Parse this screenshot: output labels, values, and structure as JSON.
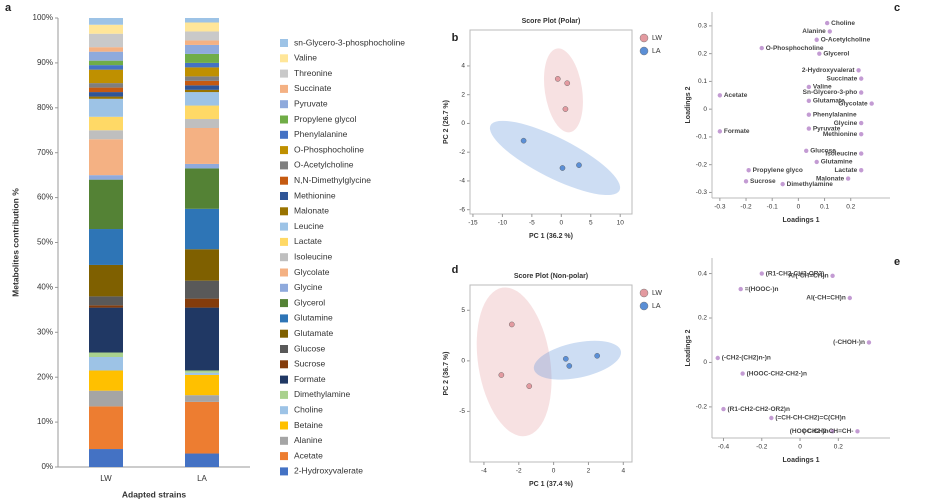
{
  "chart_data": [
    {
      "type": "bar",
      "stacked": true,
      "panel": "a",
      "ylabel": "Metabolites contribution %",
      "xlabel": "Adapted strains",
      "categories": [
        "LW",
        "LA"
      ],
      "ylim": [
        0,
        100
      ],
      "yticks": [
        {
          "value": 0,
          "label": "0%"
        },
        {
          "value": 10,
          "label": "10%"
        },
        {
          "value": 20,
          "label": "20%"
        },
        {
          "value": 30,
          "label": "30%"
        },
        {
          "value": 40,
          "label": "40%"
        },
        {
          "value": 50,
          "label": "50%"
        },
        {
          "value": 60,
          "label": "60%"
        },
        {
          "value": 70,
          "label": "70%"
        },
        {
          "value": 80,
          "label": "80%"
        },
        {
          "value": 90,
          "label": "90%"
        },
        {
          "value": 100,
          "label": "100%"
        }
      ],
      "series": [
        {
          "name": "sn-Glycero-3-phosphocholine",
          "color": "#9dc3e6",
          "values": [
            1.5,
            1
          ]
        },
        {
          "name": "Valine",
          "color": "#ffe699",
          "values": [
            2,
            2
          ]
        },
        {
          "name": "Threonine",
          "color": "#c9c9c9",
          "values": [
            3,
            2
          ]
        },
        {
          "name": "Succinate",
          "color": "#f4b183",
          "values": [
            1,
            1
          ]
        },
        {
          "name": "Pyruvate",
          "color": "#8faadc",
          "values": [
            2,
            2
          ]
        },
        {
          "name": "Propylene glycol",
          "color": "#70ad47",
          "values": [
            1,
            2
          ]
        },
        {
          "name": "Phenylalanine",
          "color": "#4472c4",
          "values": [
            1,
            1
          ]
        },
        {
          "name": "O-Phosphocholine",
          "color": "#bf9000",
          "values": [
            3,
            2
          ]
        },
        {
          "name": "O-Acetylcholine",
          "color": "#7f7f7f",
          "values": [
            1,
            1
          ]
        },
        {
          "name": "N,N-Dimethylglycine",
          "color": "#c55a11",
          "values": [
            1,
            1
          ]
        },
        {
          "name": "Methionine",
          "color": "#2f5597",
          "values": [
            1,
            1
          ]
        },
        {
          "name": "Malonate",
          "color": "#997300",
          "values": [
            0.5,
            0.5
          ]
        },
        {
          "name": "Leucine",
          "color": "#9dc3e6",
          "values": [
            4,
            3
          ]
        },
        {
          "name": "Lactate",
          "color": "#ffd966",
          "values": [
            3,
            3
          ]
        },
        {
          "name": "Isoleucine",
          "color": "#bfbfbf",
          "values": [
            2,
            2
          ]
        },
        {
          "name": "Glycolate",
          "color": "#f4b183",
          "values": [
            8,
            8
          ]
        },
        {
          "name": "Glycine",
          "color": "#8faadc",
          "values": [
            1,
            1
          ]
        },
        {
          "name": "Glycerol",
          "color": "#548235",
          "values": [
            11,
            9
          ]
        },
        {
          "name": "Glutamine",
          "color": "#2e75b6",
          "values": [
            8,
            9
          ]
        },
        {
          "name": "Glutamate",
          "color": "#7f6000",
          "values": [
            7,
            7
          ]
        },
        {
          "name": "Glucose",
          "color": "#595959",
          "values": [
            2,
            4
          ]
        },
        {
          "name": "Sucrose",
          "color": "#843c0c",
          "values": [
            0.5,
            2
          ]
        },
        {
          "name": "Formate",
          "color": "#203864",
          "values": [
            10,
            14
          ]
        },
        {
          "name": "Dimethylamine",
          "color": "#a9d18e",
          "values": [
            1,
            0.5
          ]
        },
        {
          "name": "Choline",
          "color": "#9dc3e6",
          "values": [
            3,
            0.5
          ]
        },
        {
          "name": "Betaine",
          "color": "#ffc000",
          "values": [
            4.5,
            4.5
          ]
        },
        {
          "name": "Alanine",
          "color": "#a5a5a5",
          "values": [
            3.5,
            1.5
          ]
        },
        {
          "name": "Acetate",
          "color": "#ed7d31",
          "values": [
            9.5,
            11.5
          ]
        },
        {
          "name": "2-Hydroxyvalerate",
          "color": "#4472c4",
          "values": [
            4,
            3
          ]
        }
      ]
    },
    {
      "type": "scatter",
      "panel": "b",
      "title": "Score Plot (Polar)",
      "xlabel": "PC 1 (36.2 %)",
      "ylabel": "PC 2 (26.7 %)",
      "xlim": [
        -15.5,
        12
      ],
      "xticks": [
        -15,
        -10,
        -5,
        0,
        5,
        10
      ],
      "ylim": [
        -6.3,
        6.5
      ],
      "yticks": [
        4,
        2,
        0,
        -2,
        -4,
        -6
      ],
      "ellipses": true,
      "series": [
        {
          "name": "LW",
          "color": "#e39aa0",
          "x": [
            -0.6,
            1,
            0.7
          ],
          "values": [
            3.1,
            2.8,
            1.0
          ]
        },
        {
          "name": "LA",
          "color": "#5b8fd6",
          "x": [
            -6.4,
            0.2,
            3
          ],
          "values": [
            -1.2,
            -3.1,
            -2.9
          ]
        }
      ]
    },
    {
      "type": "scatter",
      "panel": "c",
      "xlabel": "Loadings 1",
      "ylabel": "Loadings 2",
      "xlim": [
        -0.33,
        0.35
      ],
      "xticks": [
        -0.3,
        -0.2,
        -0.1,
        0,
        0.1,
        0.2
      ],
      "ylim": [
        -0.32,
        0.35
      ],
      "yticks": [
        0.3,
        0.2,
        0.1,
        0,
        -0.1,
        -0.2,
        -0.3
      ],
      "series": [
        {
          "color": "#c39bd3",
          "point_labels": [
            "Choline",
            "Alanine",
            "O-Acetylcholine",
            "Glycerol",
            "O-Phosphocholine",
            "2-Hydroxyvalerat",
            "Succinate",
            "Sn-Glycero-3-pho",
            "Glycolate",
            "Acetate",
            "Valine",
            "Glutamate",
            "Phenylalanine",
            "Pyruvate",
            "Glycine",
            "Methionine",
            "Formate",
            "Isoleucine",
            "Glucose",
            "Glutamine",
            "Lactate",
            "Malonate",
            "Propylene glyco",
            "Sucrose",
            "Dimethylamine"
          ],
          "x": [
            0.11,
            0.12,
            0.07,
            0.08,
            -0.14,
            0.23,
            0.24,
            0.24,
            0.28,
            -0.3,
            0.04,
            0.04,
            0.04,
            0.04,
            0.24,
            0.24,
            -0.3,
            0.24,
            0.03,
            0.07,
            0.24,
            0.19,
            -0.19,
            -0.2,
            -0.06
          ],
          "values": [
            0.31,
            0.28,
            0.25,
            0.2,
            0.22,
            0.14,
            0.11,
            0.06,
            0.02,
            0.05,
            0.08,
            0.03,
            -0.02,
            -0.07,
            -0.05,
            -0.09,
            -0.08,
            -0.16,
            -0.15,
            -0.19,
            -0.22,
            -0.25,
            -0.22,
            -0.26,
            -0.27
          ]
        }
      ]
    },
    {
      "type": "scatter",
      "panel": "d",
      "title": "Score Plot (Non-polar)",
      "xlabel": "PC 1 (37.4 %)",
      "ylabel": "PC 2 (36.7 %)",
      "xlim": [
        -4.8,
        4.5
      ],
      "xticks": [
        -4,
        -2,
        0,
        2,
        4
      ],
      "ylim": [
        -10,
        7.5
      ],
      "yticks": [
        5,
        0,
        -5
      ],
      "ellipses": true,
      "series": [
        {
          "name": "LW",
          "color": "#e39aa0",
          "x": [
            -2.4,
            -3,
            -1.4
          ],
          "values": [
            3.6,
            -1.4,
            -2.5
          ]
        },
        {
          "name": "LA",
          "color": "#5b8fd6",
          "x": [
            0.7,
            0.9,
            2.5
          ],
          "values": [
            0.2,
            -0.5,
            0.5
          ]
        }
      ]
    },
    {
      "type": "scatter",
      "panel": "e",
      "xlabel": "Loadings 1",
      "ylabel": "Loadings 2",
      "xlim": [
        -0.46,
        0.47
      ],
      "xticks": [
        -0.4,
        -0.2,
        0,
        0.2
      ],
      "ylim": [
        -0.34,
        0.47
      ],
      "yticks": [
        0.4,
        0.2,
        0,
        -0.2
      ],
      "series": [
        {
          "color": "#c39bd3",
          "point_labels": [
            "(R1-CH2-CH2-OR2)",
            "Ar(-CH=CH)n",
            "=(HOOC-)n",
            "Al(-CH=CH)n",
            "(-CHOH-)n",
            "(-CH2-(CH2)n-)n",
            "(HOOC-CH2-CH2-)n",
            "(R1-CH2-CH2-OR2)n",
            "(=CH-CH-CH2)=C(CH)n",
            "(-CH2-)n",
            "(HOOC-CH2-CH=CH-"
          ],
          "x": [
            -0.2,
            0.17,
            -0.31,
            0.26,
            0.36,
            -0.43,
            -0.3,
            -0.4,
            -0.15,
            0.17,
            0.3
          ],
          "values": [
            0.4,
            0.39,
            0.33,
            0.29,
            0.09,
            0.02,
            -0.05,
            -0.21,
            -0.25,
            -0.31,
            -0.31
          ]
        }
      ]
    }
  ]
}
